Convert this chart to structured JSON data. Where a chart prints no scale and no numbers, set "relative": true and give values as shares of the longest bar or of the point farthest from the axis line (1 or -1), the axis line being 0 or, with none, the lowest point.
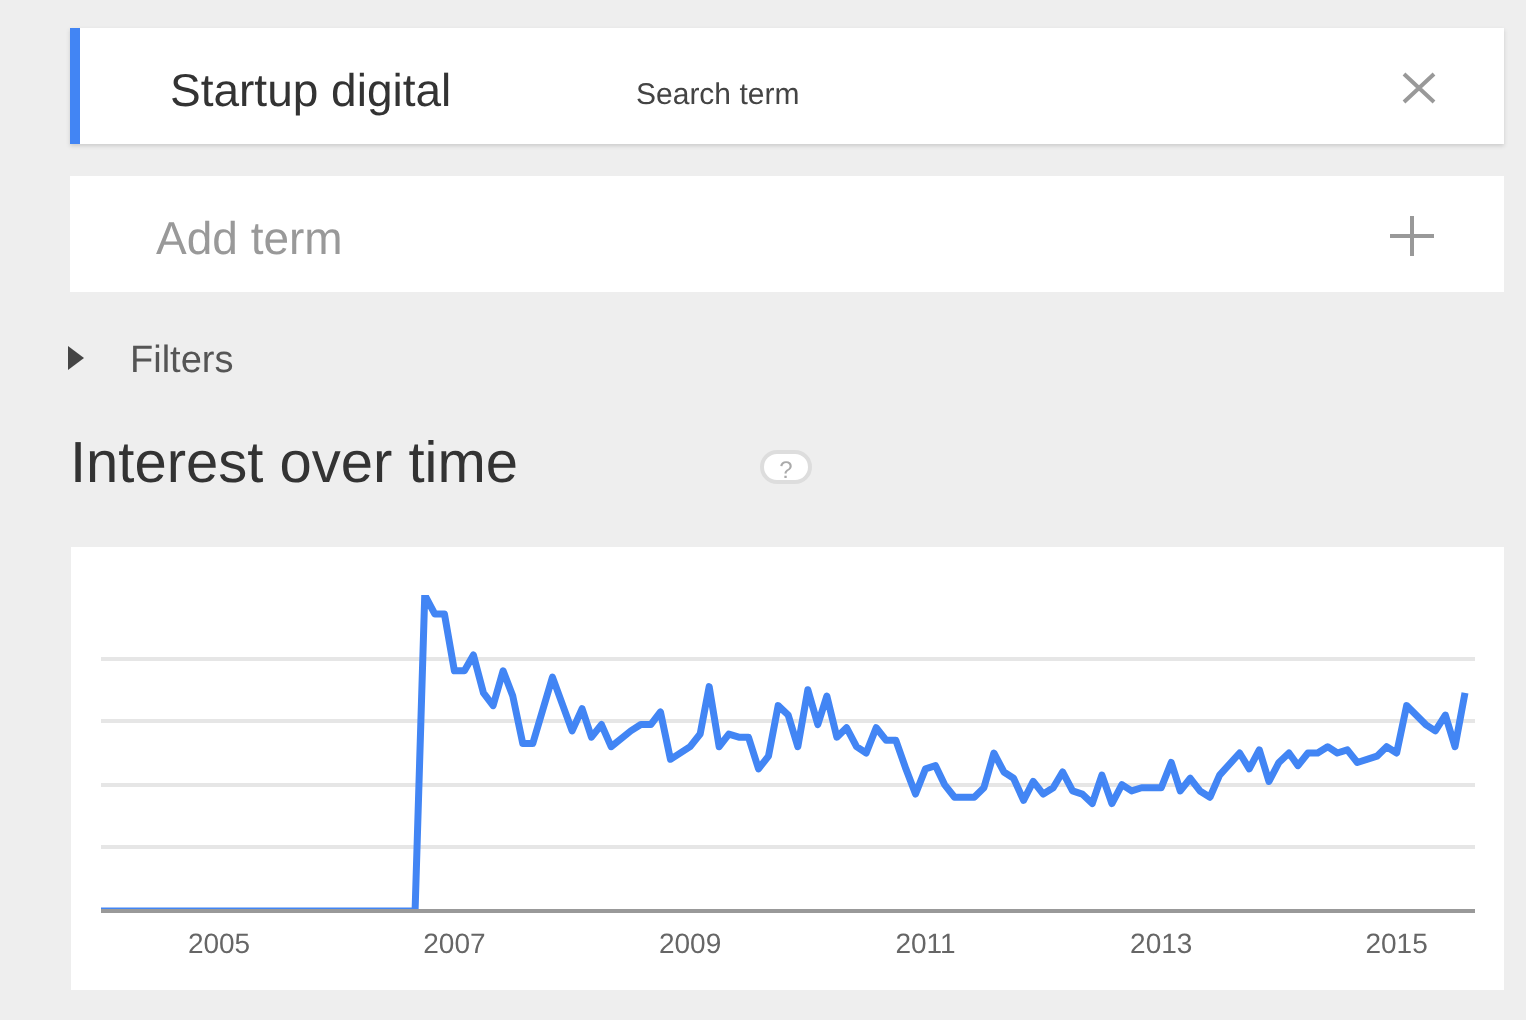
{
  "chart_data": {
    "type": "line",
    "title": "Interest over time",
    "relative": true,
    "grid": "y",
    "legend": "top",
    "marker": "none",
    "line_style": "solid",
    "annotations": [
      "Search term",
      "Add term",
      "Filters",
      "?"
    ],
    "xlim": [
      "2004-01",
      "2015-09"
    ],
    "xticks": [
      {
        "value": "2005-01",
        "label": "2005"
      },
      {
        "value": "2007-01",
        "label": "2007"
      },
      {
        "value": "2009-01",
        "label": "2009"
      },
      {
        "value": "2011-01",
        "label": "2011"
      },
      {
        "value": "2013-01",
        "label": "2013"
      },
      {
        "value": "2015-01",
        "label": "2015"
      }
    ],
    "x": [
      "2004-01",
      "2006-09",
      "2006-10",
      "2006-11",
      "2006-12",
      "2007-01",
      "2007-02",
      "2007-03",
      "2007-04",
      "2007-05",
      "2007-06",
      "2007-07",
      "2007-08",
      "2007-09",
      "2007-11",
      "2008-01",
      "2008-02",
      "2008-03",
      "2008-04",
      "2008-05",
      "2008-07",
      "2008-08",
      "2008-09",
      "2008-10",
      "2008-11",
      "2009-01",
      "2009-02",
      "2009-03",
      "2009-04",
      "2009-05",
      "2009-06",
      "2009-07",
      "2009-08",
      "2009-09",
      "2009-10",
      "2009-11",
      "2009-12",
      "2010-01",
      "2010-02",
      "2010-03",
      "2010-04",
      "2010-05",
      "2010-06",
      "2010-07",
      "2010-08",
      "2010-09",
      "2010-10",
      "2010-11",
      "2010-12",
      "2011-01",
      "2011-02",
      "2011-03",
      "2011-04",
      "2011-06",
      "2011-07",
      "2011-08",
      "2011-09",
      "2011-10",
      "2011-11",
      "2011-12",
      "2012-01",
      "2012-02",
      "2012-03",
      "2012-04",
      "2012-05",
      "2012-06",
      "2012-07",
      "2012-08",
      "2012-09",
      "2012-10",
      "2012-11",
      "2013-01",
      "2013-02",
      "2013-03",
      "2013-04",
      "2013-05",
      "2013-06",
      "2013-07",
      "2013-09",
      "2013-10",
      "2013-11",
      "2013-12",
      "2014-01",
      "2014-02",
      "2014-03",
      "2014-04",
      "2014-05",
      "2014-06",
      "2014-07",
      "2014-08",
      "2014-09",
      "2014-11",
      "2014-12",
      "2015-01",
      "2015-02",
      "2015-04",
      "2015-05",
      "2015-06",
      "2015-07",
      "2015-08"
    ],
    "series": [
      {
        "name": "Startup digital",
        "color": "#4285f4",
        "values": [
          0,
          0,
          1.0,
          0.94,
          0.94,
          0.76,
          0.76,
          0.81,
          0.69,
          0.65,
          0.76,
          0.68,
          0.53,
          0.53,
          0.74,
          0.57,
          0.64,
          0.55,
          0.59,
          0.52,
          0.57,
          0.59,
          0.59,
          0.63,
          0.48,
          0.52,
          0.56,
          0.71,
          0.52,
          0.56,
          0.55,
          0.55,
          0.45,
          0.49,
          0.65,
          0.62,
          0.52,
          0.7,
          0.59,
          0.68,
          0.55,
          0.58,
          0.52,
          0.5,
          0.58,
          0.54,
          0.54,
          0.45,
          0.37,
          0.45,
          0.46,
          0.4,
          0.36,
          0.36,
          0.39,
          0.5,
          0.44,
          0.42,
          0.35,
          0.41,
          0.37,
          0.39,
          0.44,
          0.38,
          0.37,
          0.34,
          0.43,
          0.34,
          0.4,
          0.38,
          0.39,
          0.39,
          0.47,
          0.38,
          0.42,
          0.38,
          0.36,
          0.43,
          0.5,
          0.45,
          0.51,
          0.41,
          0.47,
          0.5,
          0.46,
          0.5,
          0.5,
          0.52,
          0.5,
          0.51,
          0.47,
          0.49,
          0.52,
          0.5,
          0.65,
          0.59,
          0.57,
          0.62,
          0.52,
          0.69
        ]
      }
    ]
  }
}
